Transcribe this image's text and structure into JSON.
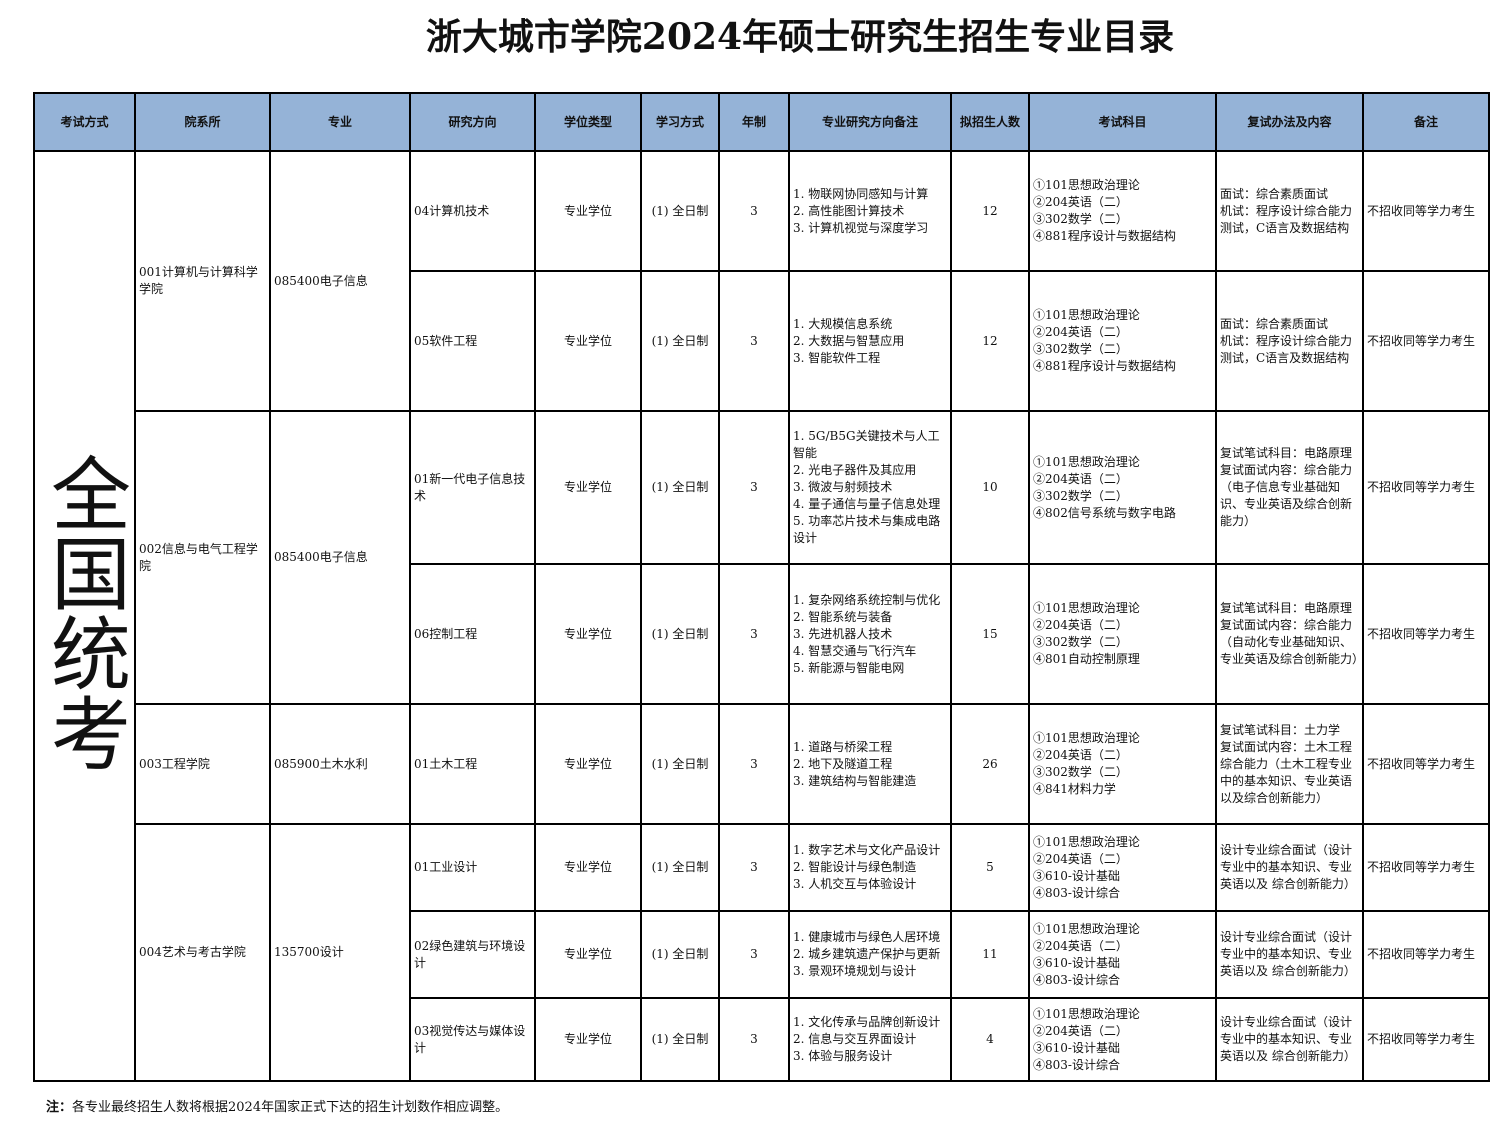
{
  "title": "浙大城市学院2024年硕士研究生招生专业目录",
  "headers": [
    "考试方式",
    "院系所",
    "专业",
    "研究方向",
    "学位类型",
    "学习方式",
    "年制",
    "专业研究方向备注",
    "拟招生人数",
    "考试科目",
    "复试办法及内容",
    "备注"
  ],
  "exam_mode": "全国统考",
  "groups": [
    {
      "dept": "001计算机与计算科学学院",
      "major": "085400电子信息",
      "rows": [
        {
          "direction": "04计算机技术",
          "degree": "专业学位",
          "mode": "(1) 全日制",
          "years": "3",
          "remarks": "1. 物联网协同感知与计算\n2. 高性能图计算技术\n3. 计算机视觉与深度学习",
          "count": "12",
          "subjects": "①101思想政治理论\n②204英语（二）\n③302数学（二）\n④881程序设计与数据结构",
          "retest": "面试：综合素质面试\n机试：程序设计综合能力测试，C语言及数据结构",
          "note": "不招收同等学力考生"
        },
        {
          "direction": "05软件工程",
          "degree": "专业学位",
          "mode": "(1) 全日制",
          "years": "3",
          "remarks": "1. 大规模信息系统\n2. 大数据与智慧应用\n3. 智能软件工程",
          "count": "12",
          "subjects": "①101思想政治理论\n②204英语（二）\n③302数学（二）\n④881程序设计与数据结构",
          "retest": "面试：综合素质面试\n机试：程序设计综合能力测试，C语言及数据结构",
          "note": "不招收同等学力考生"
        }
      ]
    },
    {
      "dept": "002信息与电气工程学院",
      "major": "085400电子信息",
      "rows": [
        {
          "direction": "01新一代电子信息技术",
          "degree": "专业学位",
          "mode": "(1) 全日制",
          "years": "3",
          "remarks": "1. 5G/B5G关键技术与人工智能\n2. 光电子器件及其应用\n3. 微波与射频技术\n4. 量子通信与量子信息处理\n5. 功率芯片技术与集成电路设计",
          "count": "10",
          "subjects": "①101思想政治理论\n②204英语（二）\n③302数学（二）\n④802信号系统与数字电路",
          "retest": "复试笔试科目：电路原理\n复试面试内容：综合能力（电子信息专业基础知识、专业英语及综合创新能力）",
          "note": "不招收同等学力考生"
        },
        {
          "direction": "06控制工程",
          "degree": "专业学位",
          "mode": "(1) 全日制",
          "years": "3",
          "remarks": "1. 复杂网络系统控制与优化\n2. 智能系统与装备\n3. 先进机器人技术\n4. 智慧交通与飞行汽车\n5. 新能源与智能电网",
          "count": "15",
          "subjects": "①101思想政治理论\n②204英语（二）\n③302数学（二）\n④801自动控制原理",
          "retest": "复试笔试科目：电路原理\n复试面试内容：综合能力（自动化专业基础知识、专业英语及综合创新能力）",
          "note": "不招收同等学力考生"
        }
      ]
    },
    {
      "dept": "003工程学院",
      "major": "085900土木水利",
      "rows": [
        {
          "direction": "01土木工程",
          "degree": "专业学位",
          "mode": "(1) 全日制",
          "years": "3",
          "remarks": "1. 道路与桥梁工程\n2. 地下及隧道工程\n3. 建筑结构与智能建造",
          "count": "26",
          "subjects": "①101思想政治理论\n②204英语（二）\n③302数学（二）\n④841材料力学",
          "retest": "复试笔试科目：土力学\n复试面试内容：土木工程综合能力（土木工程专业中的基本知识、专业英语以及综合创新能力）",
          "note": "不招收同等学力考生"
        }
      ]
    },
    {
      "dept": "004艺术与考古学院",
      "major": "135700设计",
      "rows": [
        {
          "direction": "01工业设计",
          "degree": "专业学位",
          "mode": "(1) 全日制",
          "years": "3",
          "remarks": "1. 数字艺术与文化产品设计\n2. 智能设计与绿色制造\n3. 人机交互与体验设计",
          "count": "5",
          "subjects": "①101思想政治理论\n②204英语（二）\n③610-设计基础\n④803-设计综合",
          "retest": "设计专业综合面试（设计专业中的基本知识、专业英语以及 综合创新能力）",
          "note": "不招收同等学力考生"
        },
        {
          "direction": "02绿色建筑与环境设计",
          "degree": "专业学位",
          "mode": "(1) 全日制",
          "years": "3",
          "remarks": "1. 健康城市与绿色人居环境\n2. 城乡建筑遗产保护与更新\n3. 景观环境规划与设计",
          "count": "11",
          "subjects": "①101思想政治理论\n②204英语（二）\n③610-设计基础\n④803-设计综合",
          "retest": "设计专业综合面试（设计专业中的基本知识、专业英语以及 综合创新能力）",
          "note": "不招收同等学力考生"
        },
        {
          "direction": "03视觉传达与媒体设计",
          "degree": "专业学位",
          "mode": "(1) 全日制",
          "years": "3",
          "remarks": "1. 文化传承与品牌创新设计\n2. 信息与交互界面设计\n3. 体验与服务设计",
          "count": "4",
          "subjects": "①101思想政治理论\n②204英语（二）\n③610-设计基础\n④803-设计综合",
          "retest": "设计专业综合面试（设计专业中的基本知识、专业英语以及 综合创新能力）",
          "note": "不招收同等学力考生"
        }
      ]
    }
  ],
  "footnote": {
    "label": "注：",
    "text": "各专业最终招生人数将根据2024年国家正式下达的招生计划数作相应调整。"
  },
  "colors": {
    "header_bg": "#95b3d7"
  }
}
